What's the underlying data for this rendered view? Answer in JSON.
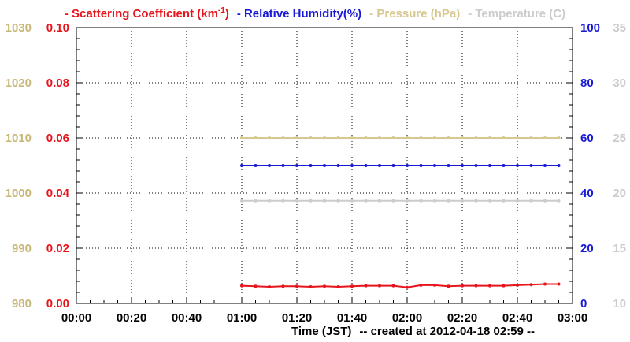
{
  "chart_data": {
    "type": "line",
    "x_ticks": [
      "00:00",
      "00:20",
      "00:40",
      "01:00",
      "01:20",
      "01:40",
      "02:00",
      "02:20",
      "02:40",
      "03:00"
    ],
    "xlabel": "Time (JST)",
    "footer": "-- created at 2012-04-18 02:59 --",
    "legend": [
      {
        "dash": "-",
        "label": "Scattering Coefficient (km",
        "sup": "-1",
        "after": ")",
        "color": "#e8141c"
      },
      {
        "dash": "-",
        "label": "Relative Humidity(%)",
        "sup": "",
        "after": "",
        "color": "#1a1ad6"
      },
      {
        "dash": "-",
        "label": "Pressure (hPa)",
        "sup": "",
        "after": "",
        "color": "#d8c890"
      },
      {
        "dash": "-",
        "label": "Temperature (C)",
        "sup": "",
        "after": "",
        "color": "#cccccc"
      }
    ],
    "axes": {
      "pressure": {
        "ticks": [
          "1030",
          "1020",
          "1010",
          "1000",
          "990",
          "980"
        ],
        "range": [
          980,
          1030
        ],
        "color": "#c8b878"
      },
      "scattering": {
        "ticks": [
          "0.10",
          "0.08",
          "0.06",
          "0.04",
          "0.02",
          "0.00"
        ],
        "range": [
          0,
          0.1
        ],
        "color": "#e8141c"
      },
      "humidity": {
        "ticks": [
          "100",
          "80",
          "60",
          "40",
          "20",
          "0"
        ],
        "range": [
          0,
          100
        ],
        "color": "#1a1ad6"
      },
      "temperature": {
        "ticks": [
          "35",
          "30",
          "25",
          "20",
          "15",
          "10"
        ],
        "range": [
          10,
          35
        ],
        "color": "#cccccc"
      }
    },
    "x_range_minutes": [
      0,
      180
    ],
    "grid": true,
    "series": [
      {
        "name": "Scattering Coefficient",
        "axis": "scattering",
        "color": "#e8141c",
        "x": [
          "01:00",
          "01:05",
          "01:10",
          "01:15",
          "01:20",
          "01:25",
          "01:30",
          "01:35",
          "01:40",
          "01:45",
          "01:50",
          "01:55",
          "02:00",
          "02:05",
          "02:10",
          "02:15",
          "02:20",
          "02:25",
          "02:30",
          "02:35",
          "02:40",
          "02:45",
          "02:50",
          "02:55"
        ],
        "values": [
          0.0064,
          0.0062,
          0.006,
          0.0062,
          0.0062,
          0.006,
          0.0062,
          0.006,
          0.0062,
          0.0064,
          0.0064,
          0.0064,
          0.0058,
          0.0066,
          0.0066,
          0.0062,
          0.0064,
          0.0064,
          0.0064,
          0.0064,
          0.0066,
          0.0068,
          0.007,
          0.007
        ]
      },
      {
        "name": "Relative Humidity",
        "axis": "humidity",
        "color": "#1a1ad6",
        "x": [
          "01:00",
          "01:05",
          "01:10",
          "01:15",
          "01:20",
          "01:25",
          "01:30",
          "01:35",
          "01:40",
          "01:45",
          "01:50",
          "01:55",
          "02:00",
          "02:05",
          "02:10",
          "02:15",
          "02:20",
          "02:25",
          "02:30",
          "02:35",
          "02:40",
          "02:45",
          "02:50",
          "02:55"
        ],
        "values": [
          50,
          50,
          50,
          50,
          50,
          50,
          50,
          50,
          50,
          50,
          50,
          50,
          50,
          50,
          50,
          50,
          50,
          50,
          50,
          50,
          50,
          50,
          50,
          50
        ]
      },
      {
        "name": "Pressure",
        "axis": "pressure",
        "color": "#d8c890",
        "x": [
          "01:00",
          "01:05",
          "01:10",
          "01:15",
          "01:20",
          "01:25",
          "01:30",
          "01:35",
          "01:40",
          "01:45",
          "01:50",
          "01:55",
          "02:00",
          "02:05",
          "02:10",
          "02:15",
          "02:20",
          "02:25",
          "02:30",
          "02:35",
          "02:40",
          "02:45",
          "02:50",
          "02:55"
        ],
        "values": [
          1010,
          1010,
          1010,
          1010,
          1010,
          1010,
          1010,
          1010,
          1010,
          1010,
          1010,
          1010,
          1010,
          1010,
          1010,
          1010,
          1010,
          1010,
          1010,
          1010,
          1010,
          1010,
          1010,
          1010
        ]
      },
      {
        "name": "Temperature",
        "axis": "temperature",
        "color": "#cccccc",
        "x": [
          "01:00",
          "01:05",
          "01:10",
          "01:15",
          "01:20",
          "01:25",
          "01:30",
          "01:35",
          "01:40",
          "01:45",
          "01:50",
          "01:55",
          "02:00",
          "02:05",
          "02:10",
          "02:15",
          "02:20",
          "02:25",
          "02:30",
          "02:35",
          "02:40",
          "02:45",
          "02:50",
          "02:55"
        ],
        "values": [
          19.3,
          19.3,
          19.3,
          19.3,
          19.3,
          19.3,
          19.3,
          19.3,
          19.3,
          19.3,
          19.3,
          19.3,
          19.3,
          19.3,
          19.3,
          19.3,
          19.3,
          19.3,
          19.3,
          19.3,
          19.3,
          19.3,
          19.3,
          19.3
        ]
      }
    ]
  }
}
